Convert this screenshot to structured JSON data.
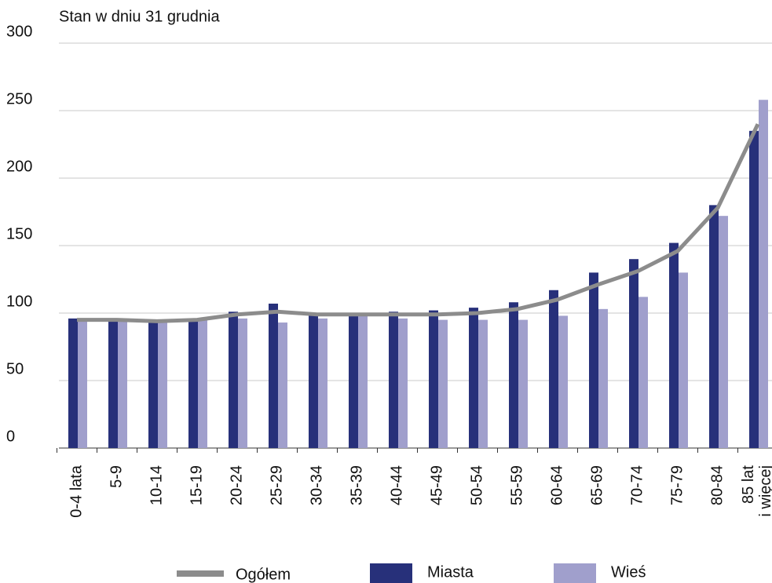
{
  "chart_data": {
    "type": "bar",
    "subtitle": "Stan w dniu 31 grudnia",
    "categories": [
      "0-4 lata",
      "5-9",
      "10-14",
      "15-19",
      "20-24",
      "25-29",
      "30-34",
      "35-39",
      "40-44",
      "45-49",
      "50-54",
      "55-59",
      "60-64",
      "65-69",
      "70-74",
      "75-79",
      "80-84",
      "85 lat\ni więcej"
    ],
    "series": [
      {
        "name": "Ogółem",
        "type": "line",
        "color": "#8c8c8c",
        "values": [
          95,
          95,
          94,
          95,
          99,
          101,
          99,
          99,
          99,
          99,
          100,
          103,
          110,
          121,
          131,
          146,
          178,
          240
        ]
      },
      {
        "name": "Miasta",
        "type": "bar",
        "color": "#27307a",
        "values": [
          96,
          95,
          94,
          95,
          101,
          107,
          100,
          99,
          101,
          102,
          104,
          108,
          117,
          130,
          140,
          152,
          180,
          235
        ]
      },
      {
        "name": "Wieś",
        "type": "bar",
        "color": "#a09fcc",
        "values": [
          95,
          95,
          94,
          95,
          96,
          93,
          96,
          99,
          96,
          95,
          95,
          95,
          98,
          103,
          112,
          130,
          172,
          258
        ]
      }
    ],
    "ylim": [
      0,
      300
    ],
    "yticks": [
      0,
      50,
      100,
      150,
      200,
      250,
      300
    ],
    "grid": true
  }
}
